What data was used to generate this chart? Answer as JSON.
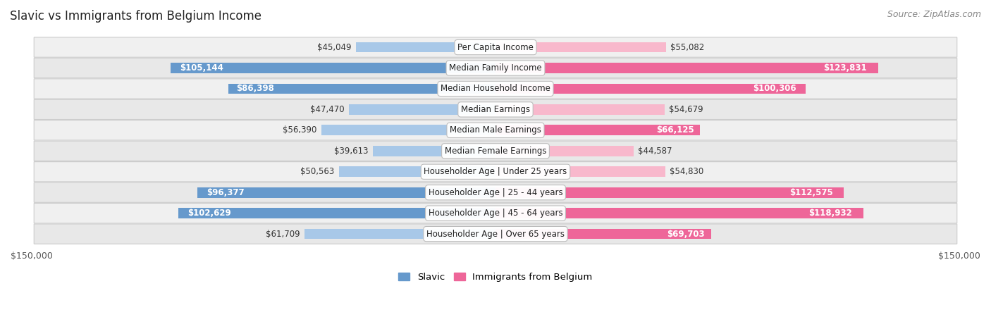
{
  "title": "Slavic vs Immigrants from Belgium Income",
  "source": "Source: ZipAtlas.com",
  "categories": [
    "Per Capita Income",
    "Median Family Income",
    "Median Household Income",
    "Median Earnings",
    "Median Male Earnings",
    "Median Female Earnings",
    "Householder Age | Under 25 years",
    "Householder Age | 25 - 44 years",
    "Householder Age | 45 - 64 years",
    "Householder Age | Over 65 years"
  ],
  "slavic_values": [
    45049,
    105144,
    86398,
    47470,
    56390,
    39613,
    50563,
    96377,
    102629,
    61709
  ],
  "belgium_values": [
    55082,
    123831,
    100306,
    54679,
    66125,
    44587,
    54830,
    112575,
    118932,
    69703
  ],
  "slavic_labels": [
    "$45,049",
    "$105,144",
    "$86,398",
    "$47,470",
    "$56,390",
    "$39,613",
    "$50,563",
    "$96,377",
    "$102,629",
    "$61,709"
  ],
  "belgium_labels": [
    "$55,082",
    "$123,831",
    "$100,306",
    "$54,679",
    "$66,125",
    "$44,587",
    "$54,830",
    "$112,575",
    "$118,932",
    "$69,703"
  ],
  "max_value": 150000,
  "slavic_color_light": "#a8c8e8",
  "slavic_color_dark": "#6699cc",
  "belgium_color_light": "#f8b8cc",
  "belgium_color_dark": "#ee6699",
  "inside_threshold": 65000,
  "legend_slavic": "Slavic",
  "legend_belgium": "Immigrants from Belgium",
  "row_bg_even": "#f0f0f0",
  "row_bg_odd": "#e8e8e8",
  "bar_height": 0.5,
  "label_fontsize": 8.5,
  "title_fontsize": 12,
  "source_fontsize": 9
}
